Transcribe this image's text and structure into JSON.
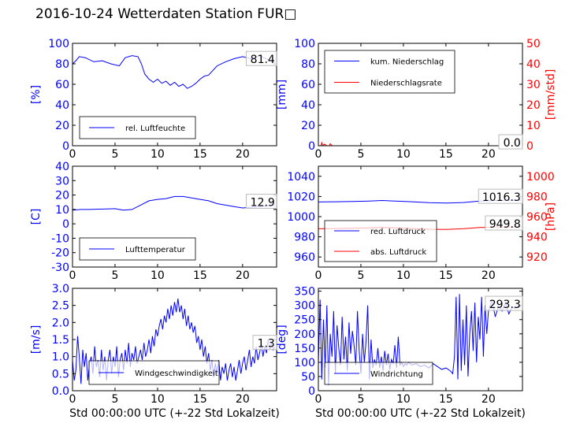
{
  "figure_title": "2016-10-24 Wetterdaten Station FUR□",
  "colors": {
    "blue": "#0000ff",
    "red": "#ff0000",
    "black": "#000000"
  },
  "chart_data": [
    {
      "id": "humidity",
      "type": "line",
      "xlabel": "",
      "ylabel": "[%]",
      "xlim": [
        0,
        24
      ],
      "ylim": [
        0,
        100
      ],
      "xticks": [
        0,
        5,
        10,
        15,
        20
      ],
      "yticks": [
        0,
        20,
        40,
        60,
        80,
        100
      ],
      "legend": {
        "position": "lower-left",
        "entries": [
          {
            "label": "rel. Luftfeuchte",
            "color": "#0000ff"
          }
        ]
      },
      "annotations": [
        {
          "text": "81.4",
          "x": 23.8,
          "y": 81.4
        }
      ],
      "series": [
        {
          "name": "rel. Luftfeuchte",
          "color": "#0000ff",
          "x": [
            0,
            0.4,
            0.8,
            1.5,
            2.5,
            3.5,
            4.5,
            5.5,
            6.2,
            7,
            7.7,
            8.1,
            8.5,
            9,
            9.5,
            10,
            10.5,
            11,
            11.5,
            12,
            12.5,
            13,
            13.5,
            14,
            14.5,
            15,
            15.5,
            16,
            17,
            18,
            19,
            20,
            21,
            22,
            23,
            23.8
          ],
          "y": [
            80,
            83,
            87,
            86,
            82,
            83,
            80,
            78,
            86,
            88,
            87,
            80,
            70,
            65,
            62,
            65,
            61,
            63,
            59,
            62,
            58,
            60,
            56,
            58,
            61,
            65,
            68,
            69,
            78,
            82,
            85,
            87,
            85,
            88,
            84,
            81.4
          ]
        }
      ]
    },
    {
      "id": "precip",
      "type": "line",
      "xlabel": "",
      "ylabel": "[mm]",
      "ylabel_right": "[mm/std]",
      "xlim": [
        0,
        24
      ],
      "ylim": [
        0,
        100
      ],
      "ylim_right": [
        0,
        50
      ],
      "xticks": [
        0,
        5,
        10,
        15,
        20
      ],
      "yticks": [
        0,
        20,
        40,
        60,
        80,
        100
      ],
      "yticks_right": [
        0,
        10,
        20,
        30,
        40,
        50
      ],
      "legend": {
        "position": "upper-left",
        "entries": [
          {
            "label": "kum. Niederschlag",
            "color": "#0000ff"
          },
          {
            "label": "Niederschlagsrate",
            "color": "#ff0000"
          }
        ]
      },
      "annotations": [
        {
          "text": "0.0",
          "x": 23.8,
          "y": 0
        },
        {
          "text": "0.0",
          "x": 23.8,
          "y": 0
        }
      ],
      "series": [
        {
          "name": "kum. Niederschlag",
          "color": "#0000ff",
          "axis": "left",
          "x": [
            0,
            24
          ],
          "y": [
            0,
            0
          ]
        },
        {
          "name": "Niederschlagsrate",
          "color": "#ff0000",
          "axis": "right",
          "x": [
            0,
            0.3,
            0.4,
            0.5,
            0.7,
            1.0,
            1.3,
            1.4,
            1.6,
            2,
            24
          ],
          "y": [
            0,
            0,
            1.5,
            0,
            0.8,
            0,
            0,
            1.0,
            0,
            0,
            0
          ]
        }
      ]
    },
    {
      "id": "temperature",
      "type": "line",
      "xlabel": "",
      "ylabel": "[C]",
      "xlim": [
        0,
        24
      ],
      "ylim": [
        -30,
        40
      ],
      "xticks": [
        0,
        5,
        10,
        15,
        20
      ],
      "yticks": [
        -30,
        -20,
        -10,
        0,
        10,
        20,
        30,
        40
      ],
      "legend": {
        "position": "lower-left",
        "entries": [
          {
            "label": "Lufttemperatur",
            "color": "#0000ff"
          }
        ]
      },
      "annotations": [
        {
          "text": "12.9",
          "x": 23.8,
          "y": 12.9
        }
      ],
      "series": [
        {
          "name": "Lufttemperatur",
          "color": "#0000ff",
          "x": [
            0,
            1,
            2,
            3,
            4,
            5,
            5.5,
            6,
            7,
            8,
            9,
            10,
            11,
            12,
            13,
            14,
            15,
            16,
            17,
            18,
            19,
            20,
            21,
            22,
            23,
            23.8
          ],
          "y": [
            9.5,
            10,
            10,
            10.2,
            10.3,
            10.5,
            10,
            9.5,
            10,
            13,
            16,
            17,
            17.5,
            19,
            19,
            18,
            17,
            16,
            14,
            13,
            12,
            11,
            11.5,
            12,
            12.5,
            12.9
          ]
        }
      ]
    },
    {
      "id": "pressure",
      "type": "line",
      "xlabel": "",
      "ylabel": "",
      "ylabel_right": "[hPa]",
      "xlim": [
        0,
        24
      ],
      "ylim": [
        950,
        1050
      ],
      "ylim_right": [
        910,
        1010
      ],
      "xticks": [
        0,
        5,
        10,
        15,
        20
      ],
      "yticks": [
        960,
        980,
        1000,
        1020,
        1040
      ],
      "yticks_right": [
        920,
        940,
        960,
        980,
        1000
      ],
      "legend": {
        "position": "lower-left",
        "entries": [
          {
            "label": "red. Luftdruck",
            "color": "#0000ff"
          },
          {
            "label": "abs. Luftdruck",
            "color": "#ff0000"
          }
        ]
      },
      "annotations": [
        {
          "text": "1016.3",
          "x": 23.8,
          "y": 1016.3
        },
        {
          "text": "949.8",
          "x": 23.8,
          "y": 949.8
        }
      ],
      "series": [
        {
          "name": "red. Luftdruck",
          "color": "#0000ff",
          "axis": "left",
          "x": [
            0,
            2,
            4,
            6,
            7.5,
            9,
            11,
            13,
            15,
            17,
            19,
            21,
            23,
            23.8
          ],
          "y": [
            1014.5,
            1014.8,
            1015,
            1015.5,
            1016,
            1015.5,
            1014.8,
            1013.8,
            1013.5,
            1014,
            1015.5,
            1016,
            1016.3,
            1016.3
          ]
        },
        {
          "name": "abs. Luftdruck",
          "color": "#ff0000",
          "axis": "right",
          "x": [
            0,
            2,
            4,
            6,
            7.5,
            9,
            11,
            13,
            15,
            17,
            19,
            21,
            23,
            23.8
          ],
          "y": [
            948,
            948.2,
            948.4,
            948.8,
            949.2,
            948.8,
            948.2,
            947.5,
            947.3,
            948,
            949.3,
            949.6,
            949.8,
            949.8
          ]
        }
      ]
    },
    {
      "id": "wind_speed",
      "type": "line",
      "xlabel": "Std 00:00:00 UTC (+-22 Std Lokalzeit)",
      "ylabel": "[m/s]",
      "xlim": [
        0,
        24
      ],
      "ylim": [
        0,
        3.0
      ],
      "xticks": [
        0,
        5,
        10,
        15,
        20
      ],
      "yticks": [
        0.0,
        0.5,
        1.0,
        1.5,
        2.0,
        2.5,
        3.0
      ],
      "legend": {
        "position": "lower-center",
        "entries": [
          {
            "label": "Windgeschwindigkeit",
            "color": "#0000ff"
          }
        ]
      },
      "annotations": [
        {
          "text": "1.3",
          "x": 23.8,
          "y": 1.3
        }
      ],
      "series": [
        {
          "name": "Windgeschwindigkeit",
          "color": "#0000ff",
          "x": [
            0,
            0.2,
            0.4,
            0.6,
            0.8,
            1.0,
            1.2,
            1.4,
            1.6,
            1.8,
            2.0,
            2.2,
            2.4,
            2.6,
            2.8,
            3.0,
            3.2,
            3.4,
            3.6,
            3.8,
            4.0,
            4.2,
            4.4,
            4.6,
            4.8,
            5.0,
            5.2,
            5.4,
            5.6,
            5.8,
            6.0,
            6.2,
            6.4,
            6.6,
            6.8,
            7.0,
            7.2,
            7.4,
            7.6,
            7.8,
            8.0,
            8.2,
            8.4,
            8.6,
            8.8,
            9.0,
            9.2,
            9.4,
            9.6,
            9.8,
            10.0,
            10.2,
            10.4,
            10.6,
            10.8,
            11.0,
            11.2,
            11.4,
            11.6,
            11.8,
            12.0,
            12.2,
            12.4,
            12.6,
            12.8,
            13.0,
            13.2,
            13.4,
            13.6,
            13.8,
            14.0,
            14.2,
            14.4,
            14.6,
            14.8,
            15.0,
            15.2,
            15.4,
            15.6,
            15.8,
            16.0,
            16.2,
            16.4,
            16.6,
            16.8,
            17.0,
            17.2,
            17.4,
            17.6,
            17.8,
            18.0,
            18.2,
            18.4,
            18.6,
            18.8,
            19.0,
            19.2,
            19.4,
            19.6,
            19.8,
            20.0,
            20.2,
            20.4,
            20.6,
            20.8,
            21.0,
            21.2,
            21.4,
            21.6,
            21.8,
            22.0,
            22.2,
            22.4,
            22.6,
            22.8,
            23.0,
            23.2,
            23.4,
            23.6,
            23.8
          ],
          "y": [
            0.9,
            0.3,
            0.6,
            1.6,
            1.0,
            0.2,
            1.2,
            0.7,
            1.1,
            0.3,
            0.8,
            1.0,
            0.5,
            1.3,
            0.7,
            0.9,
            0.4,
            1.2,
            0.6,
            1.0,
            0.3,
            0.9,
            1.2,
            0.5,
            1.0,
            0.7,
            1.3,
            0.4,
            0.9,
            1.1,
            0.6,
            1.2,
            0.8,
            1.4,
            0.7,
            1.1,
            0.9,
            1.3,
            0.8,
            1.0,
            1.2,
            0.9,
            1.4,
            1.0,
            1.2,
            1.5,
            1.1,
            1.6,
            1.3,
            1.8,
            1.6,
            1.9,
            2.1,
            1.8,
            2.2,
            2.0,
            2.4,
            2.1,
            2.5,
            2.2,
            2.6,
            2.3,
            2.7,
            2.3,
            2.5,
            2.1,
            2.4,
            1.9,
            2.2,
            1.8,
            2.0,
            1.7,
            1.9,
            1.4,
            1.6,
            1.2,
            1.5,
            1.0,
            1.3,
            0.8,
            1.1,
            0.6,
            0.9,
            0.4,
            0.8,
            0.5,
            0.9,
            0.3,
            0.7,
            0.5,
            0.8,
            0.3,
            0.6,
            0.8,
            0.4,
            0.7,
            0.3,
            0.6,
            0.9,
            0.5,
            0.8,
            1.0,
            0.6,
            0.9,
            1.2,
            0.7,
            1.0,
            0.8,
            1.3,
            0.9,
            1.1,
            1.4,
            1.0,
            1.3,
            1.1,
            1.5,
            1.2,
            1.4,
            1.2,
            1.3
          ]
        }
      ]
    },
    {
      "id": "wind_direction",
      "type": "line",
      "xlabel": "Std 00:00:00 UTC (+-22 Std Lokalzeit)",
      "ylabel": "[deg]",
      "xlim": [
        0,
        24
      ],
      "ylim": [
        0,
        360
      ],
      "xticks": [
        0,
        5,
        10,
        15,
        20
      ],
      "yticks": [
        0,
        50,
        100,
        150,
        200,
        250,
        300,
        350
      ],
      "legend": {
        "position": "lower-left",
        "entries": [
          {
            "label": "Windrichtung",
            "color": "#0000ff"
          }
        ]
      },
      "annotations": [
        {
          "text": "293.3",
          "x": 23.8,
          "y": 293.3
        }
      ],
      "series": [
        {
          "name": "Windrichtung",
          "color": "#0000ff",
          "x": [
            0,
            0.2,
            0.4,
            0.6,
            0.8,
            1.0,
            1.2,
            1.4,
            1.6,
            1.8,
            2.0,
            2.2,
            2.4,
            2.6,
            2.8,
            3.0,
            3.2,
            3.4,
            3.6,
            3.8,
            4.0,
            4.2,
            4.4,
            4.6,
            4.8,
            5.0,
            5.2,
            5.4,
            5.6,
            5.8,
            6.0,
            6.2,
            6.4,
            6.6,
            6.8,
            7.0,
            7.2,
            7.4,
            7.6,
            7.8,
            8.0,
            8.2,
            8.4,
            8.6,
            8.8,
            9.0,
            9.2,
            9.4,
            9.6,
            9.8,
            10.0,
            10.2,
            10.4,
            10.6,
            10.8,
            11.0,
            11.5,
            12,
            12.5,
            13,
            13.5,
            14,
            14.5,
            15,
            15.5,
            15.8,
            16.0,
            16.2,
            16.4,
            16.6,
            16.8,
            17.0,
            17.2,
            17.4,
            17.6,
            17.8,
            18.0,
            18.2,
            18.4,
            18.6,
            18.8,
            19.0,
            19.2,
            19.4,
            19.6,
            19.8,
            20.0,
            20.4,
            20.8,
            21.2,
            21.6,
            22.0,
            22.4,
            22.8,
            23.2,
            23.6,
            23.8
          ],
          "y": [
            100,
            320,
            40,
            250,
            80,
            300,
            20,
            200,
            120,
            280,
            60,
            230,
            150,
            90,
            260,
            110,
            190,
            70,
            240,
            130,
            210,
            160,
            90,
            280,
            140,
            60,
            200,
            100,
            170,
            300,
            40,
            180,
            80,
            110,
            90,
            150,
            80,
            120,
            70,
            140,
            90,
            130,
            75,
            110,
            95,
            160,
            80,
            190,
            90,
            100,
            85,
            95,
            90,
            100,
            95,
            90,
            95,
            85,
            90,
            80,
            95,
            85,
            75,
            80,
            70,
            60,
            120,
            330,
            40,
            340,
            70,
            250,
            90,
            300,
            50,
            200,
            280,
            140,
            310,
            100,
            260,
            180,
            330,
            120,
            300,
            200,
            280,
            320,
            260,
            300,
            280,
            310,
            270,
            295,
            290,
            300,
            293.3
          ]
        }
      ]
    }
  ]
}
